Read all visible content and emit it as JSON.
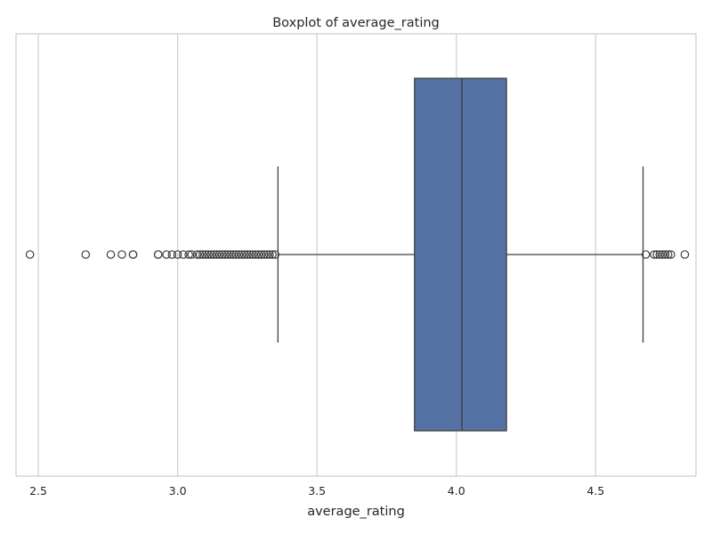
{
  "chart_data": {
    "type": "boxplot",
    "title": "Boxplot of average_rating",
    "xlabel": "average_rating",
    "ylabel": "",
    "xlim": [
      2.42,
      4.86
    ],
    "xticks": [
      2.5,
      3.0,
      3.5,
      4.0,
      4.5
    ],
    "xtick_labels": [
      "2.5",
      "3.0",
      "3.5",
      "4.0",
      "4.5"
    ],
    "grid": "vertical",
    "orientation": "horizontal",
    "box": {
      "whisker_low": 3.36,
      "q1": 3.85,
      "median": 4.02,
      "q3": 4.18,
      "whisker_high": 4.67
    },
    "outliers": [
      2.47,
      2.67,
      2.76,
      2.8,
      2.84,
      2.84,
      2.93,
      2.93,
      2.96,
      2.98,
      3.0,
      3.02,
      3.04,
      3.05,
      3.07,
      3.08,
      3.09,
      3.1,
      3.11,
      3.12,
      3.13,
      3.14,
      3.15,
      3.16,
      3.17,
      3.18,
      3.19,
      3.2,
      3.21,
      3.22,
      3.23,
      3.24,
      3.25,
      3.26,
      3.27,
      3.28,
      3.29,
      3.3,
      3.31,
      3.32,
      3.33,
      3.34,
      3.35,
      4.68,
      4.71,
      4.72,
      4.73,
      4.74,
      4.75,
      4.76,
      4.77,
      4.82
    ],
    "colors": {
      "box_fill": "#5572a4",
      "line": "#3f3f3f",
      "grid": "#d0d0d0",
      "frame": "#cccccc",
      "background": "#ffffff"
    }
  }
}
